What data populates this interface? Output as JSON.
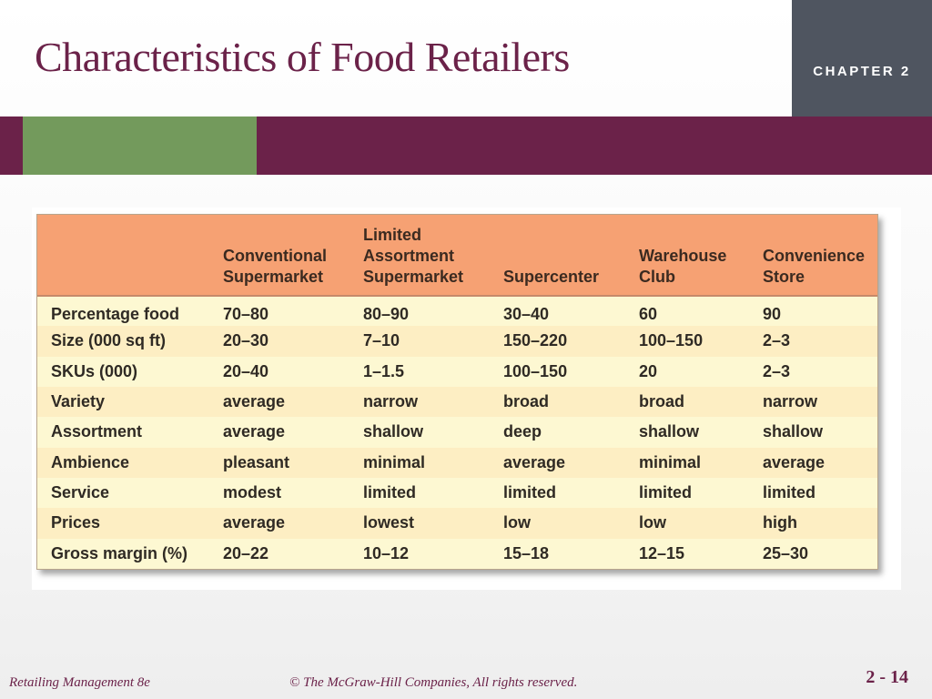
{
  "slide": {
    "title": "Characteristics of Food Retailers",
    "chapter_label": "CHAPTER 2",
    "footer_left": "Retailing Management 8e",
    "footer_copyright": "© The McGraw-Hill Companies, All rights reserved.",
    "page_number": "2 - 14"
  },
  "colors": {
    "title": "#6b2249",
    "band": "#6b2249",
    "band_accent": "#739a5c",
    "chapter_box": "#4f5560",
    "table_header": "#f6a173",
    "table_row_light": "#fdf8d2",
    "table_row_dark": "#fdeec3"
  },
  "table": {
    "headers": [
      [],
      [
        "Conventional",
        "Supermarket"
      ],
      [
        "Limited",
        "Assortment",
        "Supermarket"
      ],
      [
        "Supercenter"
      ],
      [
        "Warehouse",
        "Club"
      ],
      [
        "Convenience",
        "Store"
      ]
    ],
    "rows": [
      [
        "Percentage food",
        "70–80",
        "80–90",
        "30–40",
        "60",
        "90"
      ],
      [
        "Size (000 sq ft)",
        "20–30",
        "7–10",
        "150–220",
        "100–150",
        "2–3"
      ],
      [
        "SKUs (000)",
        "20–40",
        "1–1.5",
        "100–150",
        "20",
        "2–3"
      ],
      [
        "Variety",
        "average",
        "narrow",
        "broad",
        "broad",
        "narrow"
      ],
      [
        "Assortment",
        "average",
        "shallow",
        "deep",
        "shallow",
        "shallow"
      ],
      [
        "Ambience",
        "pleasant",
        "minimal",
        "average",
        "minimal",
        "average"
      ],
      [
        "Service",
        "modest",
        "limited",
        "limited",
        "limited",
        "limited"
      ],
      [
        "Prices",
        "average",
        "lowest",
        "low",
        "low",
        "high"
      ],
      [
        "Gross margin (%)",
        "20–22",
        "10–12",
        "15–18",
        "12–15",
        "25–30"
      ]
    ]
  }
}
